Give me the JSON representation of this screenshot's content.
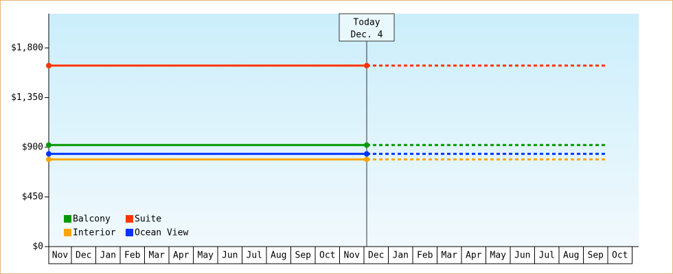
{
  "chart_data": {
    "type": "line",
    "categories": [
      "Nov",
      "Dec",
      "Jan",
      "Feb",
      "Mar",
      "Apr",
      "May",
      "Jun",
      "Jul",
      "Aug",
      "Sep",
      "Oct",
      "Nov",
      "Dec",
      "Jan",
      "Feb",
      "Mar",
      "Apr",
      "May",
      "Jun",
      "Jul",
      "Aug",
      "Sep",
      "Oct"
    ],
    "series": [
      {
        "name": "Balcony",
        "color": "#009900",
        "values": [
          920,
          920,
          920,
          920,
          920,
          920,
          920,
          920,
          920,
          920,
          920,
          920,
          920,
          920,
          920,
          920,
          920,
          920,
          920,
          920,
          920,
          920,
          920,
          920
        ]
      },
      {
        "name": "Suite",
        "color": "#ff3300",
        "values": [
          1640,
          1640,
          1640,
          1640,
          1640,
          1640,
          1640,
          1640,
          1640,
          1640,
          1640,
          1640,
          1640,
          1640,
          1640,
          1640,
          1640,
          1640,
          1640,
          1640,
          1640,
          1640,
          1640,
          1640
        ]
      },
      {
        "name": "Interior",
        "color": "#ffa500",
        "values": [
          790,
          790,
          790,
          790,
          790,
          790,
          790,
          790,
          790,
          790,
          790,
          790,
          790,
          790,
          790,
          790,
          790,
          790,
          790,
          790,
          790,
          790,
          790,
          790
        ]
      },
      {
        "name": "Ocean View",
        "color": "#0033ff",
        "values": [
          840,
          840,
          840,
          840,
          840,
          840,
          840,
          840,
          840,
          840,
          840,
          840,
          840,
          840,
          840,
          840,
          840,
          840,
          840,
          840,
          840,
          840,
          840,
          840
        ]
      }
    ],
    "annotation": {
      "lines": [
        "Today",
        "Dec. 4"
      ],
      "category": 13
    },
    "ylim": [
      0,
      2110
    ],
    "yticks": [
      {
        "value": 0,
        "label": "$0"
      },
      {
        "value": 450,
        "label": "$450"
      },
      {
        "value": 900,
        "label": "$900"
      },
      {
        "value": 1350,
        "label": "$1,350"
      },
      {
        "value": 1800,
        "label": "$1,800"
      }
    ],
    "legend": "bottom-left"
  }
}
